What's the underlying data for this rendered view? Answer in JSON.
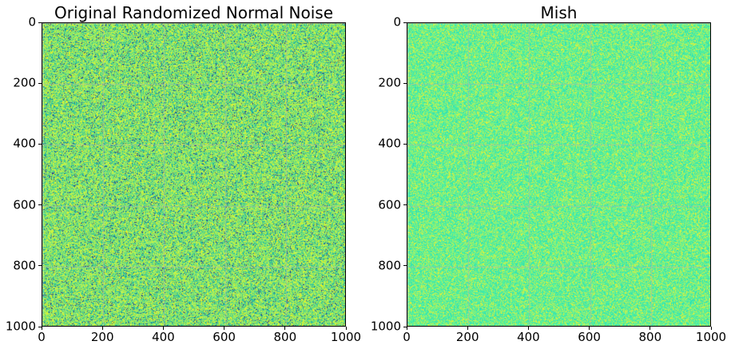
{
  "chart_data": [
    {
      "type": "heatmap",
      "title": "Original Randomized Normal Noise",
      "xlabel": "",
      "ylabel": "",
      "xlim": [
        0,
        1000
      ],
      "ylim": [
        1000,
        0
      ],
      "x_ticks": [
        0,
        200,
        400,
        600,
        800,
        1000
      ],
      "y_ticks": [
        0,
        200,
        400,
        600,
        800,
        1000
      ],
      "grid": true,
      "colormap": "viridis-like",
      "palette": [
        "#2a3a8c",
        "#1fb6a6",
        "#6fe07a",
        "#b6f25a",
        "#e8f31f"
      ],
      "data_description_values": {
        "rows": 1000,
        "cols": 1000
      }
    },
    {
      "type": "heatmap",
      "title": "Mish",
      "xlabel": "",
      "ylabel": "",
      "xlim": [
        0,
        1000
      ],
      "ylim": [
        1000,
        0
      ],
      "x_ticks": [
        0,
        200,
        400,
        600,
        800,
        1000
      ],
      "y_ticks": [
        0,
        200,
        400,
        600,
        800,
        1000
      ],
      "grid": true,
      "colormap": "viridis-like",
      "palette": [
        "#2fe2b6",
        "#4ff0a0",
        "#8ef27a",
        "#c9f24a",
        "#f0f02a"
      ],
      "data_description_values": {
        "rows": 1000,
        "cols": 1000
      }
    }
  ]
}
